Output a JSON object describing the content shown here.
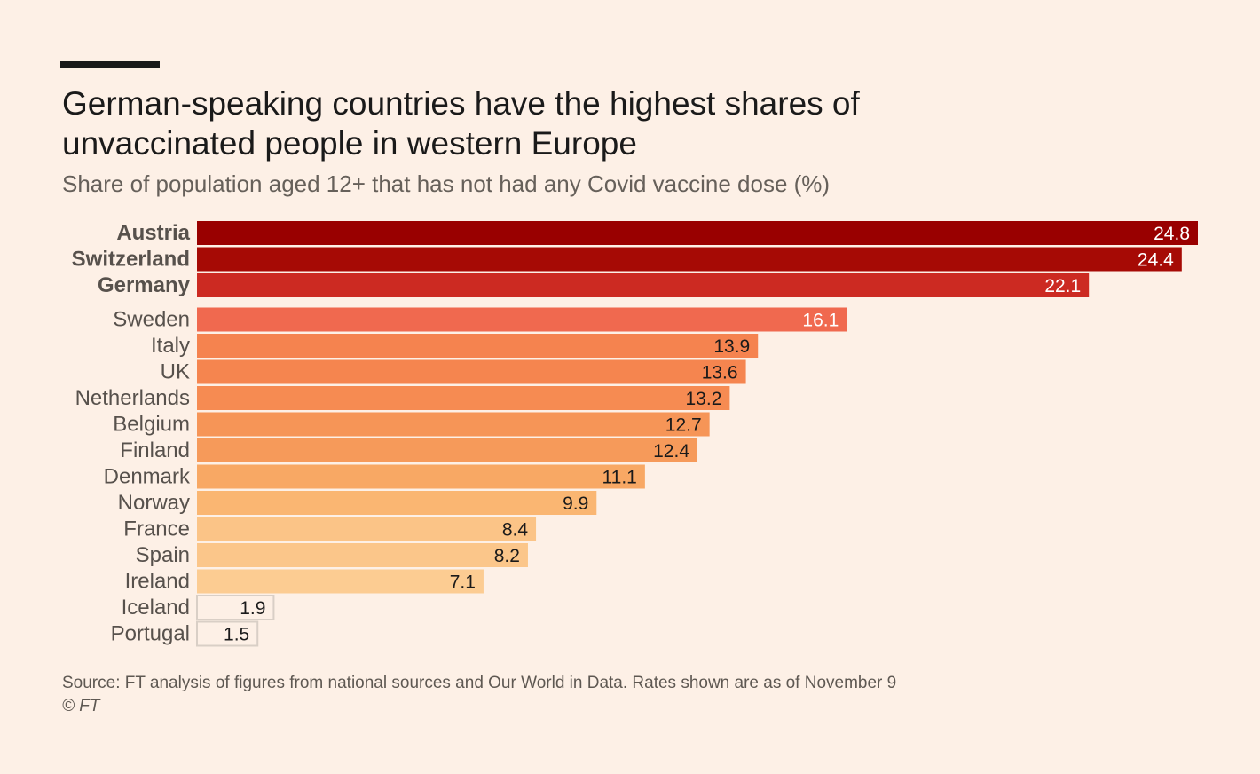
{
  "title": "German-speaking countries have the highest shares of unvaccinated people in western Europe",
  "subtitle": "Share of population aged 12+ that has not had any Covid vaccine dose (%)",
  "source": "Source: FT analysis of figures from national sources and Our World in Data. Rates shown are as of November 9",
  "copyright": "© FT",
  "chart_data": {
    "type": "bar",
    "orientation": "horizontal",
    "title": "German-speaking countries have the highest shares of unvaccinated people in western Europe",
    "subtitle": "Share of population aged 12+ that has not had any Covid vaccine dose (%)",
    "xlabel": "",
    "ylabel": "",
    "xlim": [
      0,
      25
    ],
    "grid": false,
    "categories": [
      "Austria",
      "Switzerland",
      "Germany",
      "Sweden",
      "Italy",
      "UK",
      "Netherlands",
      "Belgium",
      "Finland",
      "Denmark",
      "Norway",
      "France",
      "Spain",
      "Ireland",
      "Iceland",
      "Portugal"
    ],
    "values": [
      24.8,
      24.4,
      22.1,
      16.1,
      13.9,
      13.6,
      13.2,
      12.7,
      12.4,
      11.1,
      9.9,
      8.4,
      8.2,
      7.1,
      1.9,
      1.5
    ],
    "labels": [
      "24.8",
      "24.4",
      "22.1",
      "16.1",
      "13.9",
      "13.6",
      "13.2",
      "12.7",
      "12.4",
      "11.1",
      "9.9",
      "8.4",
      "8.2",
      "7.1",
      "1.9",
      "1.5"
    ],
    "highlighted": [
      "Austria",
      "Switzerland",
      "Germany"
    ],
    "colors": [
      "#990000",
      "#a60a05",
      "#cc2a22",
      "#f0694f",
      "#f5834f",
      "#f5854f",
      "#f68b52",
      "#f69557",
      "#f69a5a",
      "#f8a864",
      "#fab672",
      "#fbc487",
      "#fbc68a",
      "#fccc92",
      "#fdf0e6",
      "#fdf0e6"
    ],
    "label_colors": [
      "#ffffff",
      "#ffffff",
      "#ffffff",
      "#ffffff",
      "#1a1a1a",
      "#1a1a1a",
      "#1a1a1a",
      "#1a1a1a",
      "#1a1a1a",
      "#1a1a1a",
      "#1a1a1a",
      "#1a1a1a",
      "#1a1a1a",
      "#1a1a1a",
      "#1a1a1a",
      "#1a1a1a"
    ],
    "outline_color": "#d9cfc6"
  }
}
